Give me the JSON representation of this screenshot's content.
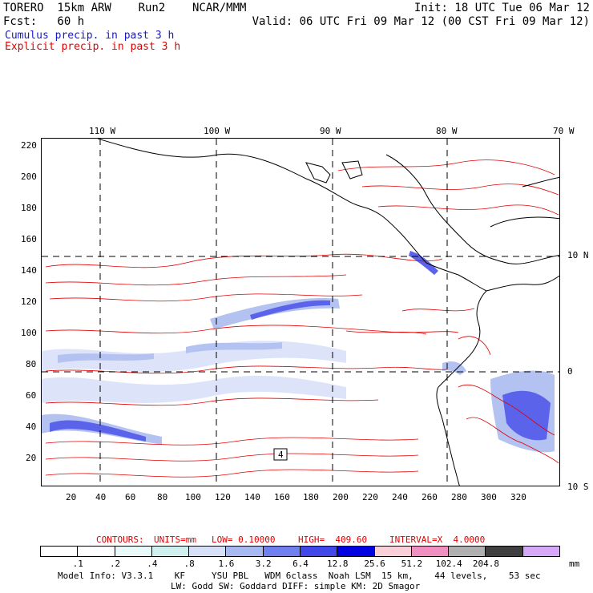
{
  "header": {
    "line1_left": "TORERO  15km ARW    Run2    NCAR/MMM",
    "line1_right": "Init: 18 UTC Tue 06 Mar 12",
    "line2_left": "Fcst:   60 h",
    "line2_right": "Valid: 06 UTC Fri 09 Mar 12 (00 CST Fri 09 Mar 12)",
    "line3": "Cumulus precip. in past 3 h",
    "line4": "Explicit precip. in past 3 h"
  },
  "map": {
    "top_lon_labels": [
      "110 W",
      "100 W",
      "90 W",
      "80 W",
      "70 W"
    ],
    "right_lat_labels": [
      "10 N",
      "0",
      "10 S"
    ],
    "y_ticks": [
      "220",
      "200",
      "180",
      "160",
      "140",
      "120",
      "100",
      "80",
      "60",
      "40",
      "20"
    ],
    "x_ticks": [
      "20",
      "40",
      "60",
      "80",
      "100",
      "120",
      "140",
      "160",
      "180",
      "200",
      "220",
      "240",
      "260",
      "280",
      "300",
      "320"
    ],
    "contour_box_label": "4"
  },
  "contours_line": {
    "label": "CONTOURS:",
    "units": "UNITS=mm",
    "low": "LOW= 0.10000",
    "high": "HIGH=  409.60",
    "interval": "INTERVAL=X  4.0000"
  },
  "colorbar": {
    "labels": [
      ".1",
      ".2",
      ".4",
      ".8",
      "1.6",
      "3.2",
      "6.4",
      "12.8",
      "25.6",
      "51.2",
      "102.4",
      "204.8"
    ],
    "unit": "mm",
    "colors": [
      "#ffffff",
      "#ffffff",
      "#e8fafa",
      "#d0f0f0",
      "#d8e0f8",
      "#a8b8f0",
      "#7080f0",
      "#4048e8",
      "#0000e0",
      "#fad0d8",
      "#f090c0",
      "#b0b0b0",
      "#404040",
      "#d8a8f8"
    ]
  },
  "footer": {
    "line1": "Model Info: V3.3.1    KF     YSU PBL   WDM 6class  Noah LSM  15 km,    44 levels,    53 sec",
    "line2": "LW: Godd SW: Goddard DIFF: simple KM: 2D Smagor"
  }
}
